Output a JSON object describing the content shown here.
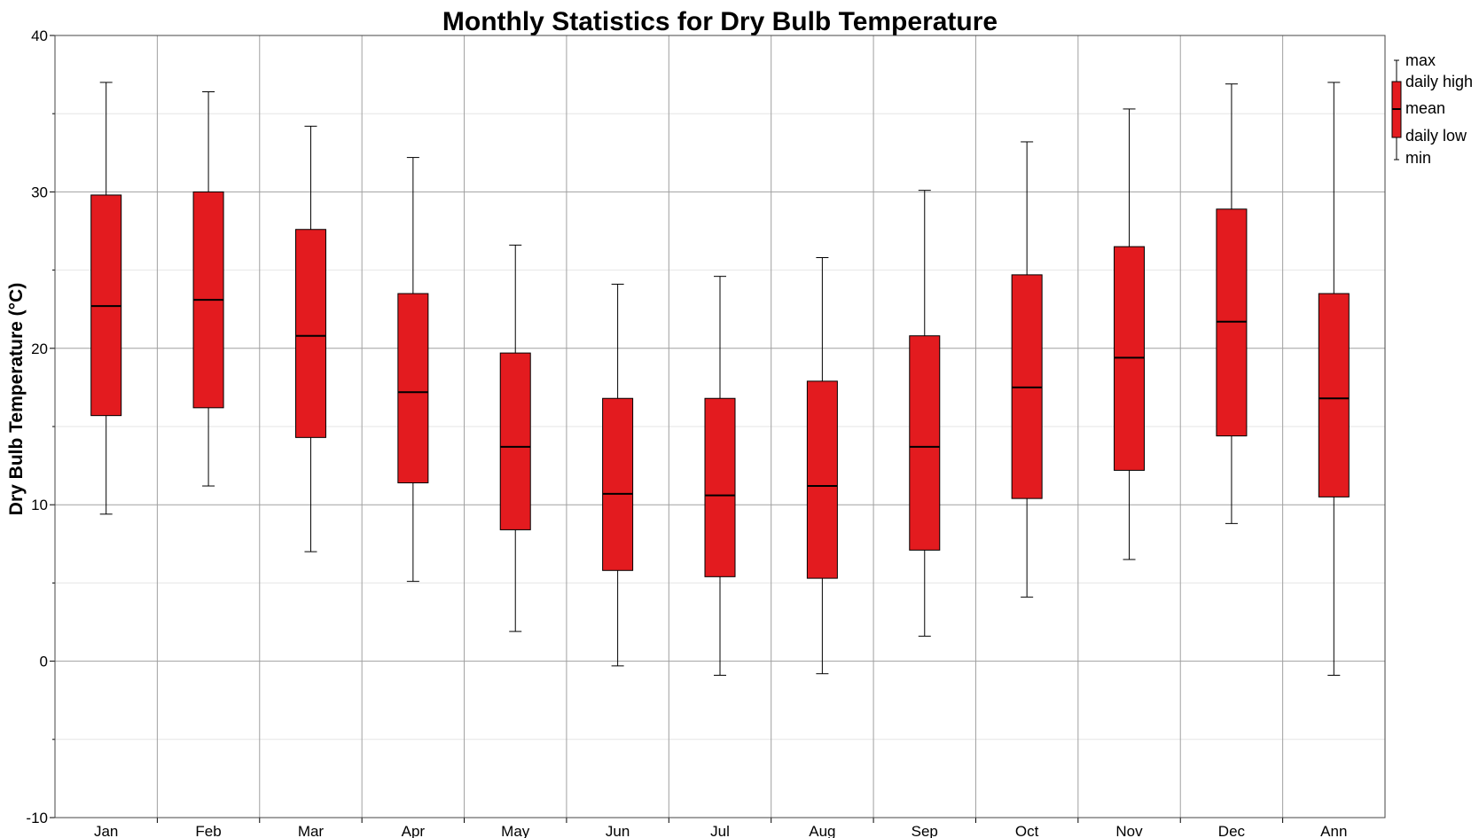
{
  "chart_data": {
    "type": "box",
    "title": "Monthly Statistics for Dry Bulb Temperature",
    "ylabel": "Dry Bulb Temperature (°C)",
    "xlabel": "",
    "ylim": [
      -10,
      40
    ],
    "yticks": [
      -10,
      0,
      10,
      20,
      30,
      40
    ],
    "grid": true,
    "color": "#e31b1f",
    "categories": [
      "Jan",
      "Feb",
      "Mar",
      "Apr",
      "May",
      "Jun",
      "Jul",
      "Aug",
      "Sep",
      "Oct",
      "Nov",
      "Dec",
      "Ann"
    ],
    "max": [
      37.0,
      36.4,
      34.2,
      32.2,
      26.6,
      24.1,
      24.6,
      25.8,
      30.1,
      33.2,
      35.3,
      36.9,
      37.0
    ],
    "daily_high": [
      29.8,
      30.0,
      27.6,
      23.5,
      19.7,
      16.8,
      16.8,
      17.9,
      20.8,
      24.7,
      26.5,
      28.9,
      23.5
    ],
    "mean": [
      22.7,
      23.1,
      20.8,
      17.2,
      13.7,
      10.7,
      10.6,
      11.2,
      13.7,
      17.5,
      19.4,
      21.7,
      16.8
    ],
    "daily_low": [
      15.7,
      16.2,
      14.3,
      11.4,
      8.4,
      5.8,
      5.4,
      5.3,
      7.1,
      10.4,
      12.2,
      14.4,
      10.5
    ],
    "min": [
      9.4,
      11.2,
      7.0,
      5.1,
      1.9,
      -0.3,
      -0.9,
      -0.8,
      1.6,
      4.1,
      6.5,
      8.8,
      -0.9
    ],
    "legend": {
      "position": "right",
      "items": [
        "max",
        "daily high",
        "mean",
        "daily low",
        "min"
      ]
    }
  }
}
